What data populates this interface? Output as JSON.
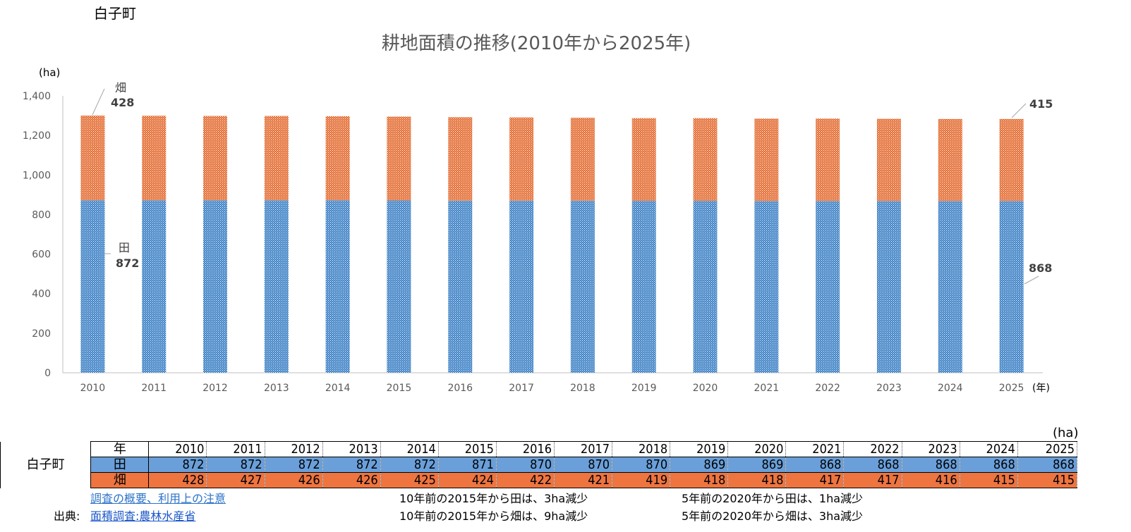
{
  "town": "白子町",
  "chart_data": {
    "type": "bar",
    "stacked": true,
    "title": "耕地面積の推移(2010年から2025年)",
    "ylabel": "(ha)",
    "xlabel": "(年)",
    "ylim": [
      0,
      1400
    ],
    "yticks": [
      "0",
      "200",
      "400",
      "600",
      "800",
      "1,000",
      "1,200",
      "1,400"
    ],
    "categories": [
      "2010",
      "2011",
      "2012",
      "2013",
      "2014",
      "2015",
      "2016",
      "2017",
      "2018",
      "2019",
      "2020",
      "2021",
      "2022",
      "2023",
      "2024",
      "2025"
    ],
    "series": [
      {
        "name": "田",
        "color": "#3a7fc4",
        "values": [
          872,
          872,
          872,
          872,
          872,
          871,
          870,
          870,
          870,
          869,
          869,
          868,
          868,
          868,
          868,
          868
        ]
      },
      {
        "name": "畑",
        "color": "#e36a2f",
        "values": [
          428,
          427,
          426,
          426,
          425,
          424,
          422,
          421,
          419,
          418,
          418,
          417,
          417,
          416,
          415,
          415
        ]
      }
    ],
    "annotations": {
      "first_paddy_name": "田",
      "first_paddy_value": "872",
      "first_field_name": "畑",
      "first_field_value": "428",
      "last_paddy_value": "868",
      "last_field_value": "415"
    },
    "grid": false,
    "legend": "none"
  },
  "table": {
    "unit": "(ha)",
    "year_header": "年",
    "town_label": "白子町",
    "paddy_label": "田",
    "field_label": "畑",
    "years": [
      "2010",
      "2011",
      "2012",
      "2013",
      "2014",
      "2015",
      "2016",
      "2017",
      "2018",
      "2019",
      "2020",
      "2021",
      "2022",
      "2023",
      "2024",
      "2025"
    ],
    "paddy": [
      "872",
      "872",
      "872",
      "872",
      "872",
      "871",
      "870",
      "870",
      "870",
      "869",
      "869",
      "868",
      "868",
      "868",
      "868",
      "868"
    ],
    "field": [
      "428",
      "427",
      "426",
      "426",
      "425",
      "424",
      "422",
      "421",
      "419",
      "418",
      "418",
      "417",
      "417",
      "416",
      "415",
      "415"
    ]
  },
  "footer": {
    "survey_link": "調査の概要、利用上の注意",
    "source_label": "出典:",
    "source_link": "面積調査:農林水産省",
    "note_10y_paddy": "10年前の2015年から田は、3ha減少",
    "note_10y_field": "10年前の2015年から畑は、9ha減少",
    "note_5y_paddy": "5年前の2020年から田は、1ha減少",
    "note_5y_field": "5年前の2020年から畑は、3ha減少"
  }
}
